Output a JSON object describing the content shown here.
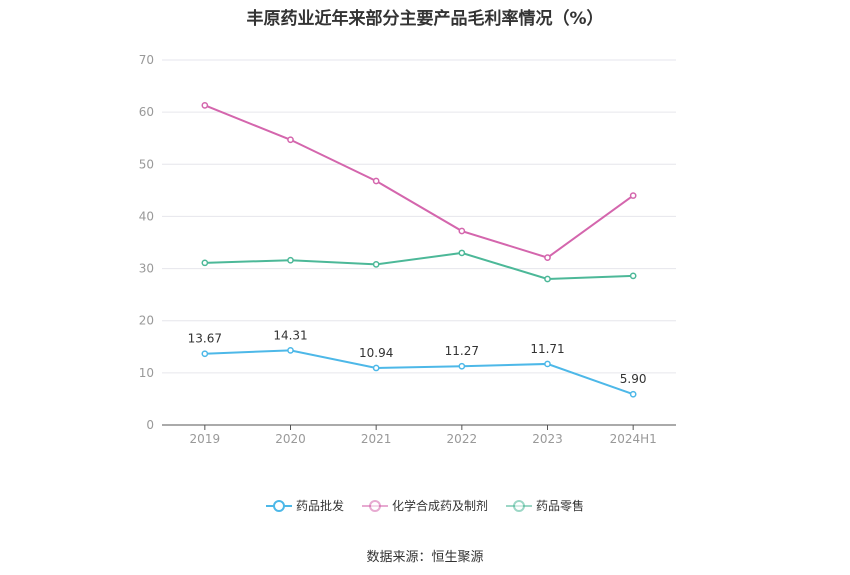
{
  "title": "丰原药业近年来部分主要产品毛利率情况（%）",
  "source": "数据来源：恒生聚源",
  "chart_data": {
    "type": "line",
    "categories": [
      "2019",
      "2020",
      "2021",
      "2022",
      "2023",
      "2024H1"
    ],
    "ylim": [
      0,
      70
    ],
    "yticks": [
      0,
      10,
      20,
      30,
      40,
      50,
      60,
      70
    ],
    "grid": true,
    "legend_position": "bottom",
    "series": [
      {
        "name": "药品批发",
        "color": "#4db8e8",
        "values": [
          13.67,
          14.31,
          10.94,
          11.27,
          11.71,
          5.9
        ],
        "labels": [
          "13.67",
          "14.31",
          "10.94",
          "11.27",
          "11.71",
          "5.90"
        ]
      },
      {
        "name": "化学合成药及制剂",
        "color": "#d466ad",
        "values": [
          61.3,
          54.7,
          46.8,
          37.2,
          32.1,
          44.0
        ]
      },
      {
        "name": "药品零售",
        "color": "#4cb898",
        "values": [
          31.1,
          31.6,
          30.8,
          33.0,
          28.0,
          28.6
        ]
      }
    ]
  }
}
